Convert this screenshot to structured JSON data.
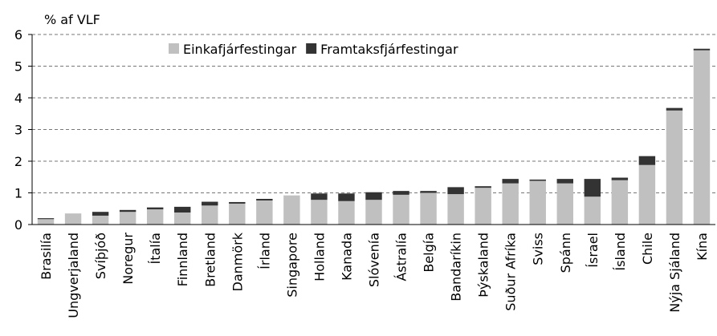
{
  "chart_data": {
    "type": "stacked_bar",
    "ylabel": "% af VLF",
    "categories": [
      "Brasilía",
      "Ungverjaland",
      "Svíþjóð",
      "Noregur",
      "Ítalía",
      "Finnland",
      "Bretland",
      "Danmörk",
      "Írland",
      "Singapore",
      "Holland",
      "Kanada",
      "Slóvenía",
      "Ástralía",
      "Belgía",
      "Bandaríkin",
      "Þýskaland",
      "Suður Afríka",
      "Sviss",
      "Spánn",
      "Ísrael",
      "Ísland",
      "Chile",
      "Nýja Sjáland",
      "Kína"
    ],
    "series": [
      {
        "name": "Einkafjárfestingar",
        "color": "#c0c0c0",
        "values": [
          0.17,
          0.35,
          0.28,
          0.4,
          0.48,
          0.38,
          0.6,
          0.66,
          0.76,
          0.92,
          0.78,
          0.74,
          0.78,
          0.94,
          1.0,
          0.96,
          1.16,
          1.3,
          1.38,
          1.3,
          0.88,
          1.4,
          1.88,
          3.6,
          5.5
        ]
      },
      {
        "name": "Framtaksfjárfestingar",
        "color": "#333333",
        "values": [
          0.03,
          0,
          0.12,
          0.06,
          0.06,
          0.18,
          0.12,
          0.05,
          0.05,
          0,
          0.2,
          0.24,
          0.24,
          0.12,
          0.06,
          0.22,
          0.05,
          0.14,
          0.04,
          0.14,
          0.56,
          0.08,
          0.28,
          0.08,
          0.05
        ]
      }
    ],
    "ylim": [
      0,
      6
    ],
    "yticks": [
      0,
      1,
      2,
      3,
      4,
      5,
      6
    ],
    "grid": true,
    "legend": "top"
  }
}
